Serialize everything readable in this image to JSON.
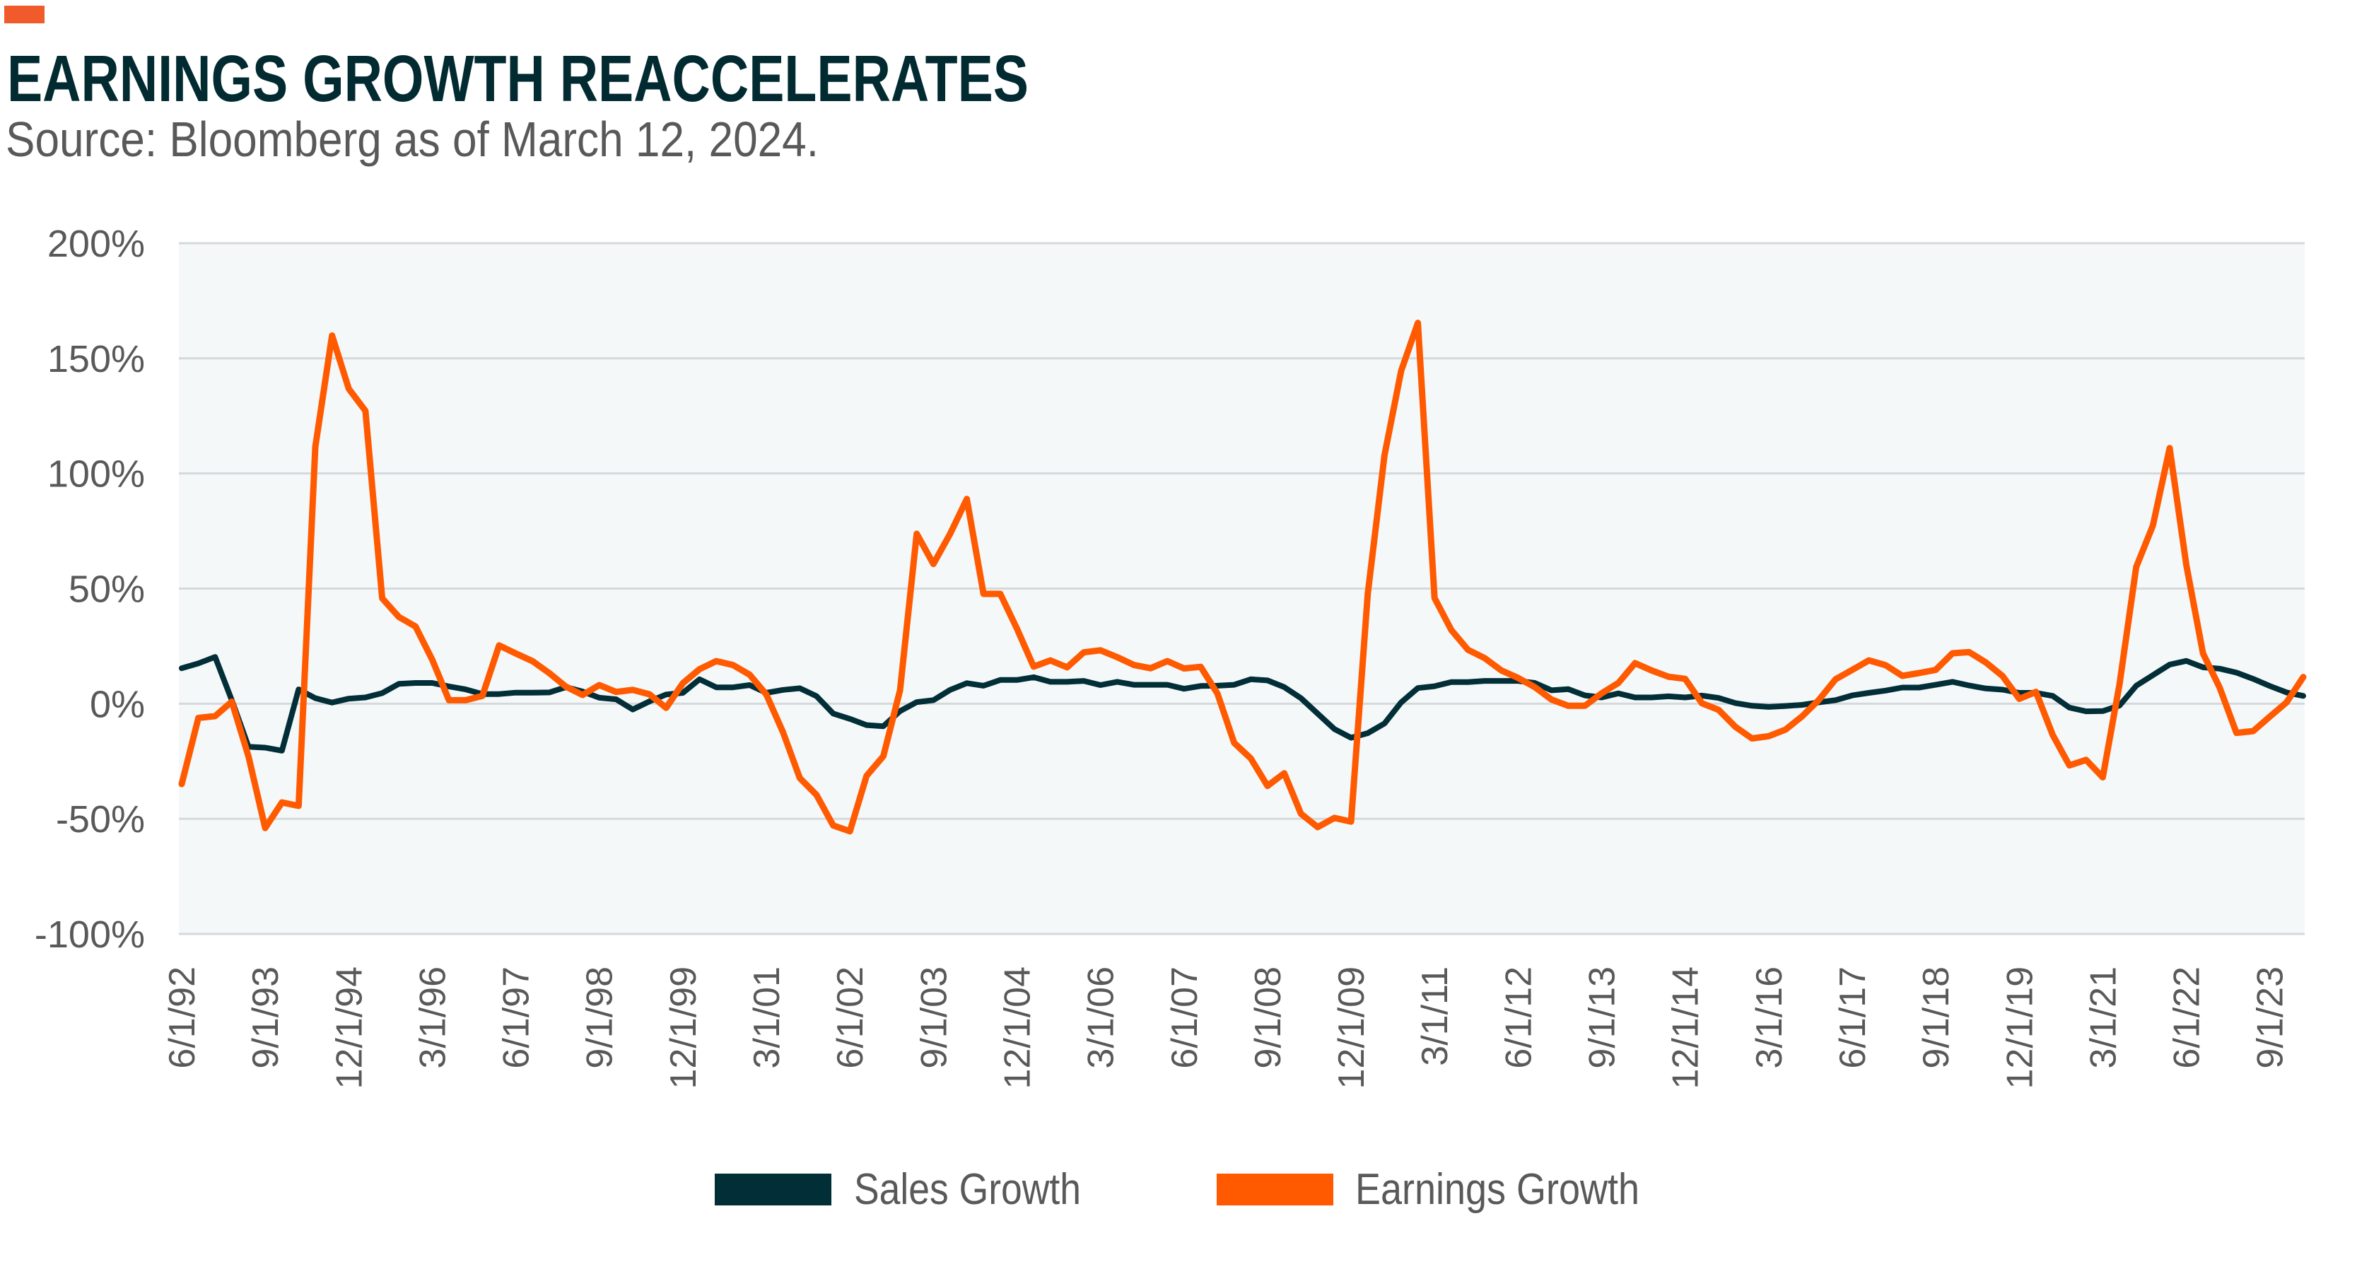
{
  "header": {
    "title": "EARNINGS GROWTH REACCELERATES",
    "subtitle": "Source: Bloomberg as of March 12, 2024.",
    "accent_color": "#f15a2b"
  },
  "colors": {
    "sales": "#022e37",
    "earnings": "#ff5a00",
    "title": "#022a31",
    "text": "#595959",
    "plot_bg": "#f4f8f9",
    "grid": "#d6d9db"
  },
  "chart_data": {
    "type": "line",
    "title": "EARNINGS GROWTH REACCELERATES",
    "subtitle": "Source: Bloomberg as of March 12, 2024.",
    "xlabel": "",
    "ylabel": "",
    "ylim": [
      -100,
      200
    ],
    "yticks": [
      200,
      150,
      100,
      50,
      0,
      -50,
      -100
    ],
    "ytick_labels": [
      "200%",
      "150%",
      "100%",
      "50%",
      "0%",
      "-50%",
      "-100%"
    ],
    "grid": true,
    "legend_position": "bottom-center",
    "xtick_labels": [
      "6/1/92",
      "9/1/93",
      "12/1/94",
      "3/1/96",
      "6/1/97",
      "9/1/98",
      "12/1/99",
      "3/1/01",
      "6/1/02",
      "9/1/03",
      "12/1/04",
      "3/1/06",
      "6/1/07",
      "9/1/08",
      "12/1/09",
      "3/1/11",
      "6/1/12",
      "9/1/13",
      "12/1/14",
      "3/1/16",
      "6/1/17",
      "9/1/18",
      "12/1/19",
      "3/1/21",
      "6/1/22",
      "9/1/23"
    ],
    "xtick_every_n_points": 5,
    "x": [
      "6/1/92",
      "9/1/92",
      "12/1/92",
      "3/1/93",
      "6/1/93",
      "9/1/93",
      "12/1/93",
      "3/1/94",
      "6/1/94",
      "9/1/94",
      "12/1/94",
      "3/1/95",
      "6/1/95",
      "9/1/95",
      "12/1/95",
      "3/1/96",
      "6/1/96",
      "9/1/96",
      "12/1/96",
      "3/1/97",
      "6/1/97",
      "9/1/97",
      "12/1/97",
      "3/1/98",
      "6/1/98",
      "9/1/98",
      "12/1/98",
      "3/1/99",
      "6/1/99",
      "9/1/99",
      "12/1/99",
      "3/1/00",
      "6/1/00",
      "9/1/00",
      "12/1/00",
      "3/1/01",
      "6/1/01",
      "9/1/01",
      "12/1/01",
      "3/1/02",
      "6/1/02",
      "9/1/02",
      "12/1/02",
      "3/1/03",
      "6/1/03",
      "9/1/03",
      "12/1/03",
      "3/1/04",
      "6/1/04",
      "9/1/04",
      "12/1/04",
      "3/1/05",
      "6/1/05",
      "9/1/05",
      "12/1/05",
      "3/1/06",
      "6/1/06",
      "9/1/06",
      "12/1/06",
      "3/1/07",
      "6/1/07",
      "9/1/07",
      "12/1/07",
      "3/1/08",
      "6/1/08",
      "9/1/08",
      "12/1/08",
      "3/1/09",
      "6/1/09",
      "9/1/09",
      "12/1/09",
      "3/1/10",
      "6/1/10",
      "9/1/10",
      "12/1/10",
      "3/1/11",
      "6/1/11",
      "9/1/11",
      "12/1/11",
      "3/1/12",
      "6/1/12",
      "9/1/12",
      "12/1/12",
      "3/1/13",
      "6/1/13",
      "9/1/13",
      "12/1/13",
      "3/1/14",
      "6/1/14",
      "9/1/14",
      "12/1/14",
      "3/1/15",
      "6/1/15",
      "9/1/15",
      "12/1/15",
      "3/1/16",
      "6/1/16",
      "9/1/16",
      "12/1/16",
      "3/1/17",
      "6/1/17",
      "9/1/17",
      "12/1/17",
      "3/1/18",
      "6/1/18",
      "9/1/18",
      "12/1/18",
      "3/1/19",
      "6/1/19",
      "9/1/19",
      "12/1/19",
      "3/1/20",
      "6/1/20",
      "9/1/20",
      "12/1/20",
      "3/1/21",
      "6/1/21",
      "9/1/21",
      "12/1/21",
      "3/1/22",
      "6/1/22",
      "9/1/22",
      "12/1/22",
      "3/1/23",
      "6/1/23",
      "9/1/23",
      "12/1/23",
      "3/1/24"
    ],
    "series": [
      {
        "name": "Sales Growth",
        "key": "sales",
        "values": [
          15.4,
          17.5,
          20.3,
          1.5,
          -18.7,
          -19.1,
          -20.4,
          6.2,
          2.4,
          0.5,
          2.2,
          2.7,
          4.6,
          8.6,
          9.0,
          9.0,
          7.5,
          6.2,
          4.2,
          4.2,
          4.8,
          4.8,
          4.9,
          7.2,
          5.3,
          2.6,
          1.9,
          -2.5,
          1.0,
          4.0,
          4.7,
          10.6,
          7.1,
          7.1,
          8.1,
          4.7,
          6.0,
          6.7,
          3.3,
          -4.3,
          -6.6,
          -9.3,
          -9.8,
          -3.2,
          0.7,
          1.5,
          6.0,
          8.9,
          7.8,
          10.3,
          10.3,
          11.5,
          9.5,
          9.5,
          9.9,
          8.1,
          9.5,
          8.2,
          8.2,
          8.2,
          6.5,
          7.7,
          7.8,
          8.2,
          10.6,
          10.1,
          7.2,
          2.4,
          -4.3,
          -11.0,
          -14.8,
          -12.8,
          -8.6,
          0.6,
          6.8,
          7.6,
          9.4,
          9.4,
          9.9,
          9.9,
          9.9,
          9.0,
          5.8,
          6.3,
          3.6,
          2.7,
          4.5,
          2.7,
          2.7,
          3.2,
          2.7,
          3.5,
          2.5,
          0.3,
          -0.9,
          -1.4,
          -1.0,
          -0.5,
          0.6,
          1.5,
          3.6,
          4.7,
          5.7,
          7.0,
          7.0,
          8.2,
          9.5,
          7.9,
          6.6,
          6.1,
          4.7,
          4.7,
          3.4,
          -1.7,
          -3.3,
          -3.2,
          -0.8,
          7.8,
          12.4,
          17.0,
          18.6,
          15.8,
          15.2,
          13.5,
          10.8,
          7.7,
          4.9,
          3.4
        ]
      },
      {
        "name": "Earnings Growth",
        "key": "earnings",
        "values": [
          -34.9,
          -6.2,
          -5.4,
          0.9,
          -22.9,
          -54.0,
          -42.9,
          -44.4,
          111.5,
          159.9,
          136.8,
          127.2,
          45.8,
          37.7,
          33.5,
          19.1,
          1.5,
          1.5,
          3.4,
          25.3,
          21.8,
          18.5,
          13.3,
          7.4,
          3.8,
          8.1,
          5.1,
          6.0,
          4.1,
          -1.8,
          8.9,
          15.0,
          18.5,
          16.8,
          12.6,
          4.0,
          -12.5,
          -32.3,
          -39.6,
          -52.9,
          -55.4,
          -31.3,
          -22.8,
          5.8,
          73.8,
          60.7,
          73.8,
          88.9,
          47.7,
          47.7,
          32.6,
          16.1,
          18.8,
          15.8,
          22.3,
          23.2,
          20.2,
          16.8,
          15.4,
          18.5,
          15.3,
          16.0,
          4.4,
          -17.0,
          -23.8,
          -35.7,
          -30.2,
          -47.8,
          -53.6,
          -49.6,
          -51.2,
          47.7,
          107.9,
          144.6,
          165.4,
          45.9,
          32.0,
          23.4,
          19.8,
          14.4,
          11.2,
          7.2,
          1.8,
          -0.9,
          -0.9,
          4.5,
          9.0,
          17.6,
          14.4,
          11.7,
          10.8,
          0.2,
          -2.7,
          -10.0,
          -15.1,
          -14.1,
          -11.3,
          -5.5,
          1.6,
          10.6,
          14.7,
          18.8,
          16.7,
          12.1,
          13.3,
          14.7,
          21.9,
          22.4,
          17.9,
          12.0,
          2.1,
          5.1,
          -13.6,
          -26.8,
          -24.4,
          -32.0,
          8.5,
          59.4,
          77.4,
          111.0,
          60.2,
          21.8,
          6.9,
          -12.7,
          -11.9,
          -5.6,
          0.6,
          11.6
        ]
      }
    ]
  },
  "legend": {
    "items": [
      {
        "label": "Sales Growth",
        "key": "sales"
      },
      {
        "label": "Earnings Growth",
        "key": "earnings"
      }
    ]
  }
}
